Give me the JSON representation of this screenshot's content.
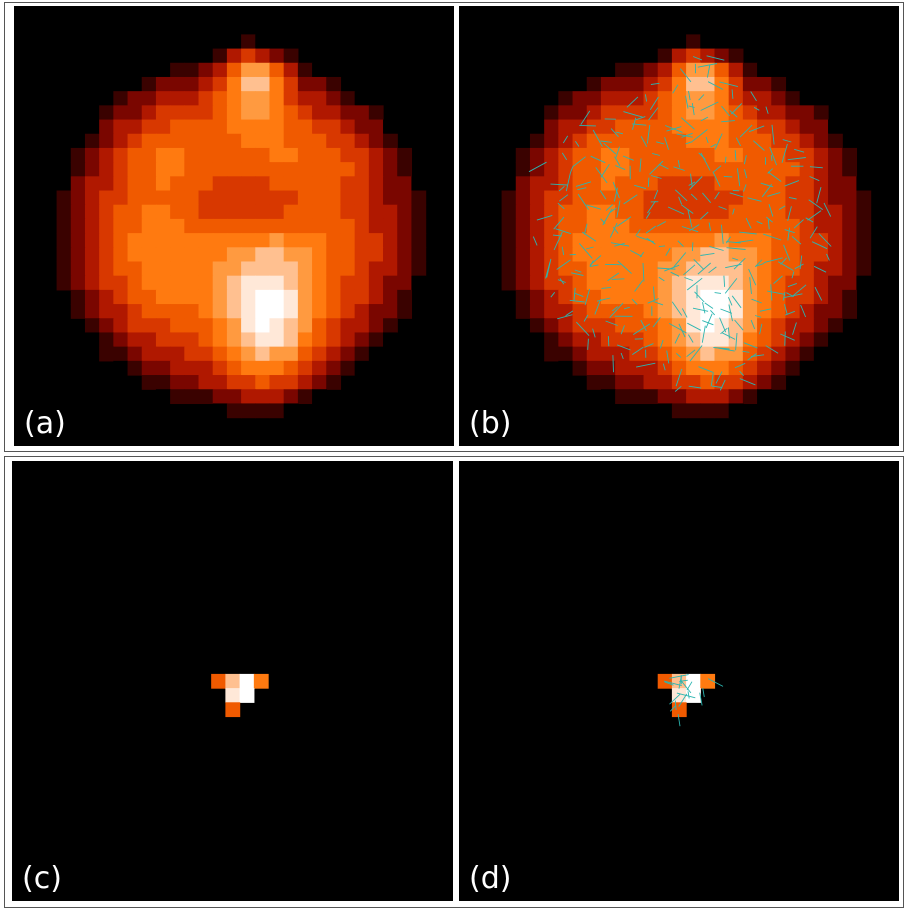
{
  "panels": [
    {
      "id": "a",
      "label": "(a)",
      "content": "heatmap-large",
      "overlay": false
    },
    {
      "id": "b",
      "label": "(b)",
      "content": "heatmap-large",
      "overlay": true
    },
    {
      "id": "c",
      "label": "(c)",
      "content": "heatmap-small",
      "overlay": false
    },
    {
      "id": "d",
      "label": "(d)",
      "content": "heatmap-small",
      "overlay": true
    }
  ],
  "colors": {
    "background": "#000000",
    "overlay_line": "#2bb5b0",
    "colormap": [
      "#000000",
      "#3a0200",
      "#7a0600",
      "#b01800",
      "#d83800",
      "#f05a00",
      "#ff7a10",
      "#ff9a40",
      "#ffc090",
      "#ffe8d8",
      "#ffffff"
    ]
  }
}
